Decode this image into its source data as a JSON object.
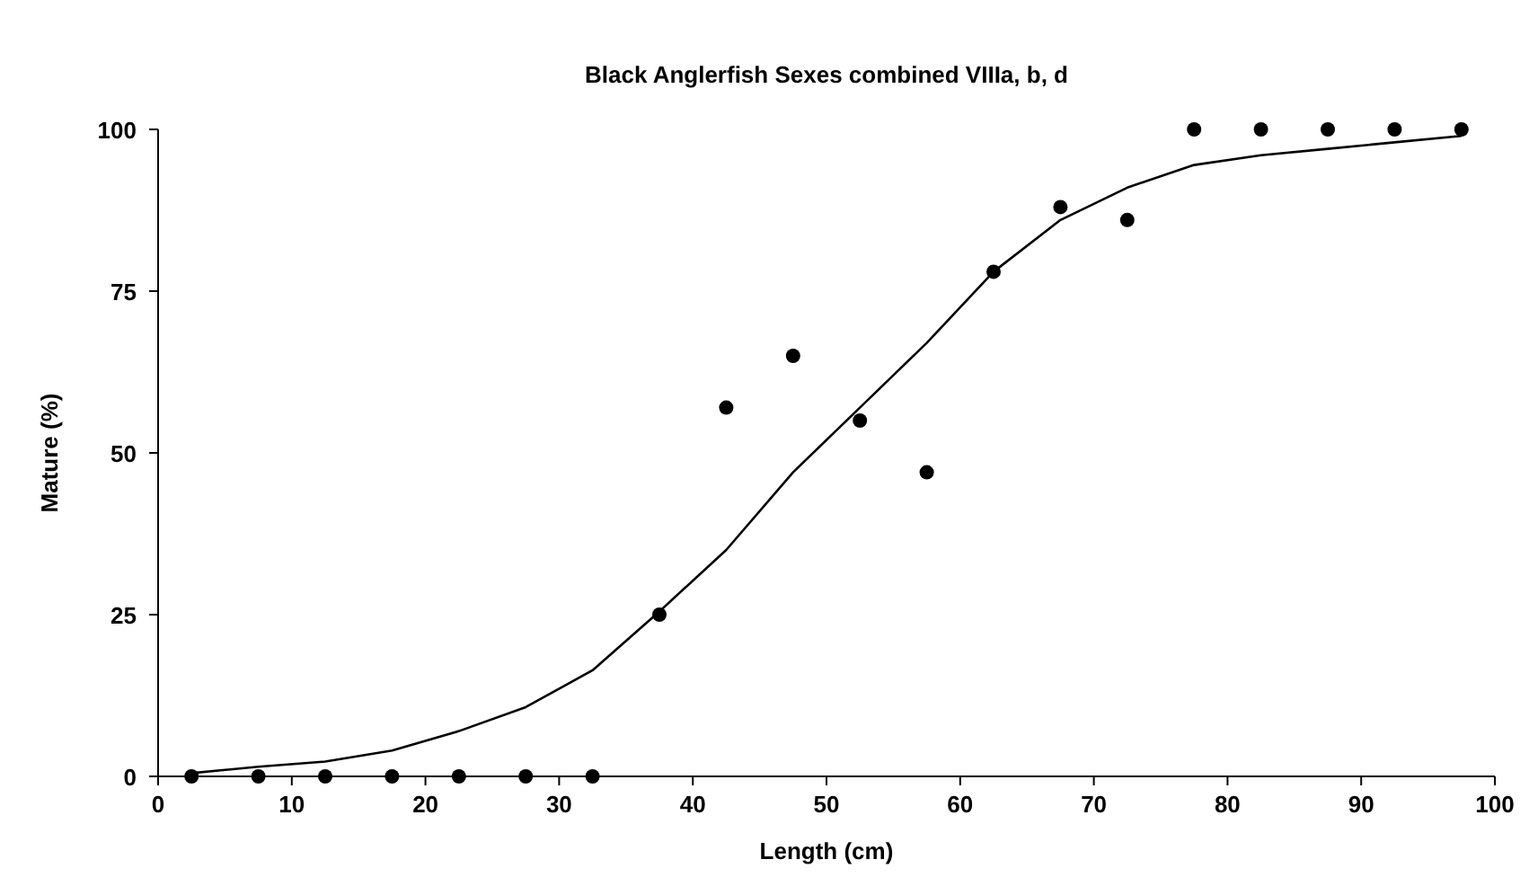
{
  "chart_data": {
    "type": "scatter",
    "title": "Black Anglerfish Sexes combined VIIIa, b, d",
    "xlabel": "Length (cm)",
    "ylabel": "Mature (%)",
    "x": [
      2.5,
      7.5,
      12.5,
      17.5,
      22.5,
      27.5,
      32.5,
      37.5,
      42.5,
      47.5,
      52.5,
      57.5,
      62.5,
      67.5,
      72.5,
      77.5,
      82.5,
      87.5,
      92.5,
      97.5
    ],
    "series": [
      {
        "color": "#000000",
        "marker": "circle",
        "values": [
          0,
          0,
          0,
          0,
          0,
          0,
          0,
          25,
          57,
          65,
          55,
          47,
          78,
          88,
          86,
          100,
          100,
          100,
          100,
          100
        ]
      },
      {
        "type": "line",
        "color": "#000000",
        "marker": "none",
        "values": [
          0.5,
          1.5,
          2.3,
          4,
          7,
          10.7,
          16.4,
          25.5,
          35,
          47,
          57,
          67,
          78,
          86,
          91,
          94.5,
          96,
          97,
          98,
          99
        ]
      }
    ],
    "xlim": [
      0,
      100
    ],
    "xticks": [
      0,
      10,
      20,
      30,
      40,
      50,
      60,
      70,
      80,
      90,
      100
    ],
    "ylim": [
      0,
      100
    ],
    "yticks": [
      0,
      25,
      50,
      75,
      100
    ],
    "grid": false
  }
}
